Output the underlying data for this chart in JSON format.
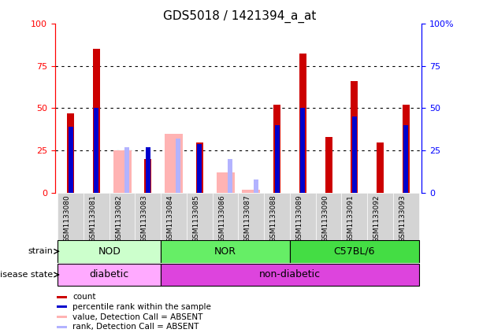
{
  "title": "GDS5018 / 1421394_a_at",
  "samples": [
    "GSM1133080",
    "GSM1133081",
    "GSM1133082",
    "GSM1133083",
    "GSM1133084",
    "GSM1133085",
    "GSM1133086",
    "GSM1133087",
    "GSM1133088",
    "GSM1133089",
    "GSM1133090",
    "GSM1133091",
    "GSM1133092",
    "GSM1133093"
  ],
  "count_values": [
    47,
    85,
    null,
    20,
    null,
    30,
    null,
    null,
    52,
    82,
    33,
    66,
    30,
    52
  ],
  "rank_values": [
    39,
    50,
    null,
    27,
    null,
    29,
    null,
    null,
    40,
    50,
    null,
    45,
    null,
    40
  ],
  "absent_count_values": [
    null,
    null,
    25,
    null,
    35,
    null,
    12,
    2,
    null,
    null,
    null,
    null,
    null,
    null
  ],
  "absent_rank_values": [
    null,
    null,
    27,
    null,
    32,
    null,
    20,
    8,
    null,
    null,
    null,
    null,
    null,
    null
  ],
  "count_color": "#cc0000",
  "rank_color": "#0000cc",
  "absent_count_color": "#ffb3b3",
  "absent_rank_color": "#b3b3ff",
  "grid_lines": [
    25,
    50,
    75
  ],
  "ylim": [
    0,
    100
  ],
  "strain_groups": [
    {
      "label": "NOD",
      "start": 0,
      "end": 4,
      "color": "#ccffcc"
    },
    {
      "label": "NOR",
      "start": 4,
      "end": 9,
      "color": "#66ee66"
    },
    {
      "label": "C57BL/6",
      "start": 9,
      "end": 14,
      "color": "#44dd44"
    }
  ],
  "disease_groups": [
    {
      "label": "diabetic",
      "start": 0,
      "end": 4,
      "color": "#ffaaff"
    },
    {
      "label": "non-diabetic",
      "start": 4,
      "end": 14,
      "color": "#dd44dd"
    }
  ],
  "background_color": "#ffffff",
  "tick_bg_color": "#d4d4d4",
  "legend_items": [
    {
      "label": "count",
      "color": "#cc0000"
    },
    {
      "label": "percentile rank within the sample",
      "color": "#0000cc"
    },
    {
      "label": "value, Detection Call = ABSENT",
      "color": "#ffb3b3"
    },
    {
      "label": "rank, Detection Call = ABSENT",
      "color": "#b3b3ff"
    }
  ]
}
